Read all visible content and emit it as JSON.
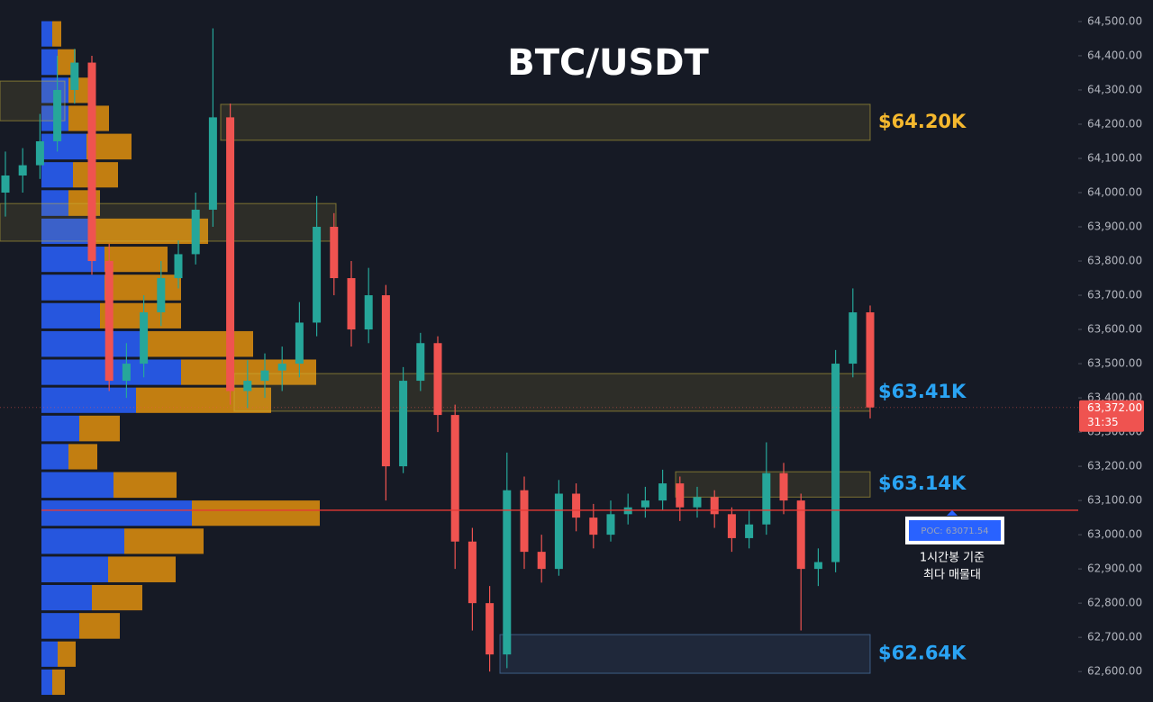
{
  "chart_data": {
    "type": "candlestick",
    "title": "BTC/USDT",
    "up_color": "#26a69a",
    "down_color": "#ef5350",
    "ylim": [
      62511,
      64563
    ],
    "yticks": [
      {
        "value": 62600,
        "label": "62,600.00"
      },
      {
        "value": 62700,
        "label": "62,700.00"
      },
      {
        "value": 62800,
        "label": "62,800.00"
      },
      {
        "value": 62900,
        "label": "62,900.00"
      },
      {
        "value": 63000,
        "label": "63,000.00"
      },
      {
        "value": 63100,
        "label": "63,100.00"
      },
      {
        "value": 63200,
        "label": "63,200.00"
      },
      {
        "value": 63300,
        "label": "63,300.00"
      },
      {
        "value": 63400,
        "label": "63,400.00"
      },
      {
        "value": 63500,
        "label": "63,500.00"
      },
      {
        "value": 63600,
        "label": "63,600.00"
      },
      {
        "value": 63700,
        "label": "63,700.00"
      },
      {
        "value": 63800,
        "label": "63,800.00"
      },
      {
        "value": 63900,
        "label": "63,900.00"
      },
      {
        "value": 64000,
        "label": "64,000.00"
      },
      {
        "value": 64100,
        "label": "64,100.00"
      },
      {
        "value": 64200,
        "label": "64,200.00"
      },
      {
        "value": 64300,
        "label": "64,300.00"
      },
      {
        "value": 64400,
        "label": "64,400.00"
      },
      {
        "value": 64500,
        "label": "64,500.00"
      }
    ],
    "open": [
      64000,
      64050,
      64080,
      64150,
      64300,
      64380,
      63800,
      63450,
      63500,
      63650,
      63750,
      63820,
      63950,
      64220,
      63420,
      63450,
      63480,
      63500,
      63620,
      63900,
      63750,
      63600,
      63700,
      63200,
      63450,
      63560,
      63350,
      62980,
      62800,
      62650,
      63130,
      62950,
      62900,
      63120,
      63050,
      63000,
      63060,
      63080,
      63100,
      63150,
      63080,
      63110,
      63060,
      62990,
      63030,
      63180,
      63100,
      62900,
      62920,
      63500,
      63650
    ],
    "high": [
      64120,
      64130,
      64230,
      64400,
      64420,
      64400,
      63850,
      63560,
      63700,
      63800,
      63860,
      64000,
      64480,
      64260,
      63510,
      63530,
      63550,
      63680,
      63990,
      63940,
      63800,
      63780,
      63730,
      63490,
      63590,
      63580,
      63380,
      63020,
      62850,
      63240,
      63170,
      63000,
      63160,
      63150,
      63090,
      63100,
      63120,
      63140,
      63190,
      63170,
      63140,
      63130,
      63080,
      63070,
      63270,
      63210,
      63120,
      62960,
      63540,
      63720,
      63670
    ],
    "low": [
      63930,
      64000,
      64040,
      64120,
      64260,
      63760,
      63420,
      63400,
      63460,
      63610,
      63720,
      63790,
      63900,
      63380,
      63370,
      63400,
      63420,
      63460,
      63580,
      63700,
      63550,
      63560,
      63100,
      63180,
      63420,
      63300,
      62900,
      62720,
      62600,
      62610,
      62900,
      62860,
      62880,
      63010,
      62960,
      62980,
      63030,
      63050,
      63070,
      63040,
      63050,
      63020,
      62950,
      62960,
      63000,
      63060,
      62720,
      62850,
      62890,
      63460,
      63340
    ],
    "close": [
      64050,
      64080,
      64150,
      64300,
      64380,
      63800,
      63450,
      63500,
      63650,
      63750,
      63820,
      63950,
      64220,
      63420,
      63450,
      63480,
      63500,
      63620,
      63900,
      63750,
      63600,
      63700,
      63200,
      63450,
      63560,
      63350,
      62980,
      62800,
      62650,
      63130,
      62950,
      62900,
      63120,
      63050,
      63000,
      63060,
      63080,
      63100,
      63150,
      63080,
      63110,
      63060,
      62990,
      63030,
      63180,
      63100,
      62900,
      62920,
      63500,
      63650,
      63372
    ],
    "volume_profile": {
      "bins": [
        64505,
        64423,
        64340,
        64258,
        64176,
        64093,
        64011,
        63928,
        63846,
        63764,
        63681,
        63599,
        63516,
        63434,
        63352,
        63269,
        63187,
        63104,
        63022,
        62940,
        62857,
        62775,
        62692,
        62610,
        62528
      ],
      "series": [
        {
          "color": "#2962ff",
          "values": [
            12,
            18,
            30,
            30,
            50,
            35,
            30,
            55,
            70,
            70,
            65,
            110,
            155,
            105,
            42,
            30,
            80,
            167,
            92,
            74,
            56,
            42,
            18,
            12
          ]
        },
        {
          "color": "#e0900e",
          "values": [
            10,
            20,
            25,
            45,
            50,
            50,
            35,
            130,
            70,
            85,
            90,
            125,
            150,
            150,
            45,
            32,
            70,
            142,
            88,
            75,
            56,
            45,
            20,
            14
          ]
        }
      ]
    },
    "zones": [
      {
        "top": 64326,
        "bottom": 64210,
        "color": "#c8b43c"
      },
      {
        "top": 64258,
        "bottom": 64153,
        "color": "#c8b43c",
        "label": "$64.20K",
        "label_color": "#f5b82e"
      },
      {
        "top": 63968,
        "bottom": 63858,
        "color": "#c8b43c"
      },
      {
        "top": 63471,
        "bottom": 63361,
        "color": "#c8b43c",
        "label": "$63.41K",
        "label_color": "#2aa4f4"
      },
      {
        "top": 63184,
        "bottom": 63110,
        "color": "#c8b43c",
        "label": "$63.14K",
        "label_color": "#2aa4f4"
      },
      {
        "top": 62708,
        "bottom": 62595,
        "color": "#5a8cc8",
        "label": "$62.64K",
        "label_color": "#2aa4f4"
      }
    ],
    "poc": {
      "value": 63071.54,
      "label": "POC: 63071.54",
      "color": "#e53935"
    },
    "last_price": {
      "value": 63372,
      "label": "63,372.00"
    },
    "countdown": "31:35",
    "annotation": [
      "1시간봉 기준",
      "최다 매물대"
    ]
  }
}
